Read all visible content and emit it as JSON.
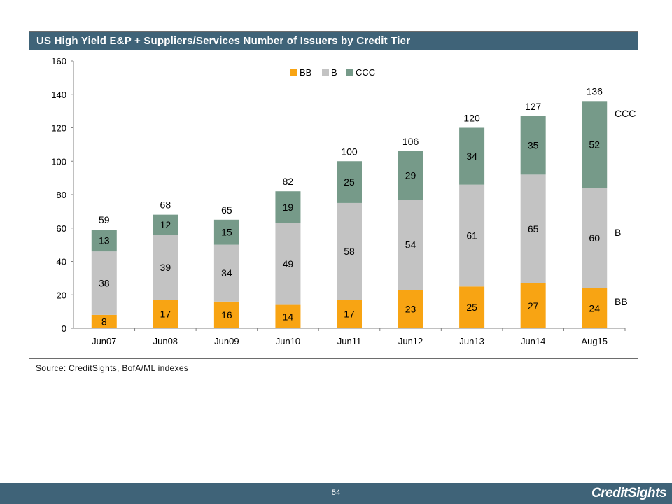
{
  "chart_data": {
    "type": "bar",
    "stacked": true,
    "title": "US High Yield E&P + Suppliers/Services Number of Issuers by Credit Tier",
    "categories": [
      "Jun07",
      "Jun08",
      "Jun09",
      "Jun10",
      "Jun11",
      "Jun12",
      "Jun13",
      "Jun14",
      "Aug15"
    ],
    "series": [
      {
        "name": "BB",
        "color": "#f8a413",
        "values": [
          8,
          17,
          16,
          14,
          17,
          23,
          25,
          27,
          24
        ]
      },
      {
        "name": "B",
        "color": "#c3c3c3",
        "values": [
          38,
          39,
          34,
          49,
          58,
          54,
          61,
          65,
          60
        ]
      },
      {
        "name": "CCC",
        "color": "#769a89",
        "values": [
          13,
          12,
          15,
          19,
          25,
          29,
          34,
          35,
          52
        ]
      }
    ],
    "totals": [
      59,
      68,
      65,
      82,
      100,
      106,
      120,
      127,
      136
    ],
    "ylim": [
      0,
      160
    ],
    "yticks": [
      0,
      20,
      40,
      60,
      80,
      100,
      120,
      140,
      160
    ],
    "grid": false,
    "legend": "top-center",
    "right_labels": [
      "CCC",
      "B",
      "BB"
    ]
  },
  "source": "Source: CreditSights, BofA/ML indexes",
  "page_number": "54",
  "logo": "CreditSights"
}
